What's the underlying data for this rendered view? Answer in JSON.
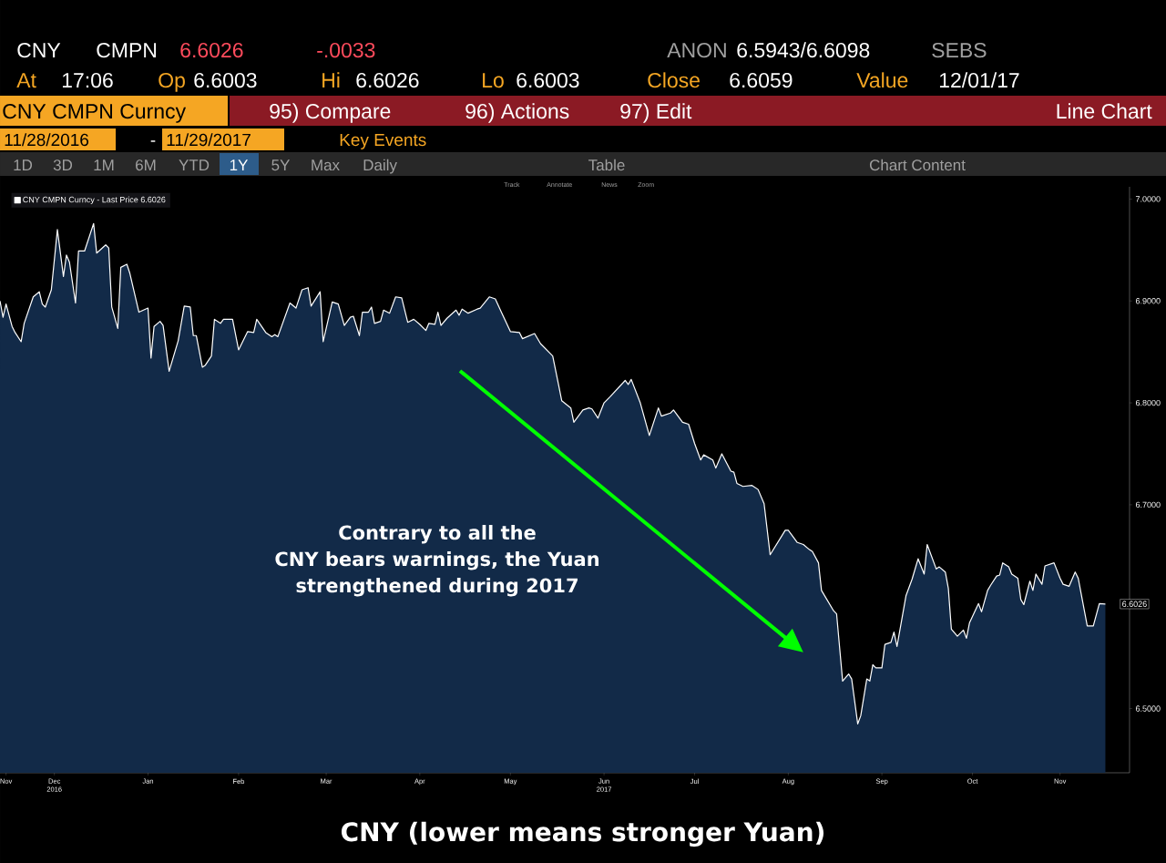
{
  "chart_data": {
    "type": "area",
    "title": "CNY (lower means stronger Yuan)",
    "xlim": [
      "2016-11-28",
      "2017-12-07"
    ],
    "ylim": [
      6.437,
      7.012
    ],
    "yticks": [
      {
        "value": 6.5,
        "label": "6.5000"
      },
      {
        "value": 6.6,
        "label": null
      },
      {
        "value": 6.7,
        "label": "6.7000"
      },
      {
        "value": 6.8,
        "label": "6.8000"
      },
      {
        "value": 6.9,
        "label": "6.9000"
      },
      {
        "value": 7.0,
        "label": "7.0000"
      }
    ],
    "xticks": [
      {
        "value": "2016-11-30",
        "label": "Nov"
      },
      {
        "value": "2016-12-16",
        "label": "Dec 2016"
      },
      {
        "value": "2017-01-16",
        "label": "Jan"
      },
      {
        "value": "2017-02-15",
        "label": "Feb"
      },
      {
        "value": "2017-03-16",
        "label": "Mar"
      },
      {
        "value": "2017-04-16",
        "label": "Apr"
      },
      {
        "value": "2017-05-16",
        "label": "May"
      },
      {
        "value": "2017-06-16",
        "label": "Jun 2017"
      },
      {
        "value": "2017-07-16",
        "label": "Jul"
      },
      {
        "value": "2017-08-16",
        "label": "Aug"
      },
      {
        "value": "2017-09-16",
        "label": "Sep"
      },
      {
        "value": "2017-10-16",
        "label": "Oct"
      },
      {
        "value": "2017-11-14",
        "label": "Nov"
      }
    ],
    "legend": "top left",
    "grid": false,
    "marker": "none",
    "annotations": [
      "CNY",
      "CMPN",
      "6.6026",
      "-.0033",
      "ANON",
      "6.5943/6.6098",
      "SEBS",
      "At",
      "17:06",
      "Op",
      "6.6003",
      "Hi",
      "6.6026",
      "Lo",
      "6.6003",
      "Close",
      "6.6059",
      "Value",
      "12/01/17",
      "CNY CMPN Curncy",
      "95) Compare",
      "96) Actions",
      "97) Edit",
      "Line Chart",
      "11/28/2016",
      "-",
      "11/29/2017",
      "Key Events",
      "1D",
      "3D",
      "1M",
      "6M",
      "YTD",
      "1Y",
      "5Y",
      "Max",
      "Daily",
      "Table",
      "Chart Content",
      "Track",
      "Annotate",
      "News",
      "Zoom",
      "Contrary to all the",
      "CNY bears warnings, the Yuan",
      "strengthened during 2017",
      {
        "text": "6.6026",
        "x": "2017-11-29",
        "y": 6.6026
      }
    ],
    "series": [
      {
        "name": "CNY CMPN Curncy - Last Price 6.6026",
        "color": "#ffffff",
        "x": [
          "2016-11-28",
          "2016-11-29",
          "2016-11-30",
          "2016-12-02",
          "2016-12-03",
          "2016-12-05",
          "2016-12-06",
          "2016-12-09",
          "2016-12-11",
          "2016-12-12",
          "2016-12-13",
          "2016-12-15",
          "2016-12-17",
          "2016-12-19",
          "2016-12-20",
          "2016-12-21",
          "2016-12-23",
          "2016-12-24",
          "2016-12-26",
          "2016-12-29",
          "2016-12-30",
          "2017-01-02",
          "2017-01-03",
          "2017-01-04",
          "2017-01-06",
          "2017-01-07",
          "2017-01-09",
          "2017-01-10",
          "2017-01-13",
          "2017-01-16",
          "2017-01-17",
          "2017-01-18",
          "2017-01-20",
          "2017-01-21",
          "2017-01-23",
          "2017-01-26",
          "2017-01-28",
          "2017-01-30",
          "2017-01-31",
          "2017-02-01",
          "2017-02-03",
          "2017-02-04",
          "2017-02-06",
          "2017-02-07",
          "2017-02-09",
          "2017-02-10",
          "2017-02-13",
          "2017-02-15",
          "2017-02-18",
          "2017-02-20",
          "2017-02-21",
          "2017-02-24",
          "2017-02-26",
          "2017-02-27",
          "2017-02-28",
          "2017-03-04",
          "2017-03-06",
          "2017-03-08",
          "2017-03-10",
          "2017-03-11",
          "2017-03-14",
          "2017-03-15",
          "2017-03-18",
          "2017-03-20",
          "2017-03-22",
          "2017-03-24",
          "2017-03-25",
          "2017-03-27",
          "2017-03-28",
          "2017-03-30",
          "2017-03-31",
          "2017-04-01",
          "2017-04-03",
          "2017-04-04",
          "2017-04-06",
          "2017-04-08",
          "2017-04-10",
          "2017-04-12",
          "2017-04-14",
          "2017-04-16",
          "2017-04-18",
          "2017-04-19",
          "2017-04-21",
          "2017-04-22",
          "2017-04-23",
          "2017-04-25",
          "2017-04-28",
          "2017-04-29",
          "2017-04-30",
          "2017-05-02",
          "2017-05-05",
          "2017-05-06",
          "2017-05-09",
          "2017-05-11",
          "2017-05-13",
          "2017-05-16",
          "2017-05-19",
          "2017-05-20",
          "2017-05-24",
          "2017-05-26",
          "2017-05-28",
          "2017-05-30",
          "2017-06-01",
          "2017-06-02",
          "2017-06-05",
          "2017-06-06",
          "2017-06-09",
          "2017-06-11",
          "2017-06-12",
          "2017-06-14",
          "2017-06-16",
          "2017-06-18",
          "2017-06-23",
          "2017-06-24",
          "2017-06-25",
          "2017-06-28",
          "2017-07-01",
          "2017-07-04",
          "2017-07-05",
          "2017-07-08",
          "2017-07-09",
          "2017-07-12",
          "2017-07-14",
          "2017-07-16",
          "2017-07-18",
          "2017-07-19",
          "2017-07-22",
          "2017-07-23",
          "2017-07-25",
          "2017-07-28",
          "2017-07-29",
          "2017-07-30",
          "2017-08-01",
          "2017-08-04",
          "2017-08-06",
          "2017-08-08",
          "2017-08-10",
          "2017-08-15",
          "2017-08-16",
          "2017-08-19",
          "2017-08-21",
          "2017-08-23",
          "2017-08-24",
          "2017-08-26",
          "2017-08-27",
          "2017-08-31",
          "2017-09-01",
          "2017-09-03",
          "2017-09-05",
          "2017-09-06",
          "2017-09-08",
          "2017-09-09",
          "2017-09-11",
          "2017-09-12",
          "2017-09-13",
          "2017-09-14",
          "2017-09-16",
          "2017-09-17",
          "2017-09-19",
          "2017-09-20",
          "2017-09-21",
          "2017-09-24",
          "2017-09-26",
          "2017-09-28",
          "2017-09-30",
          "2017-10-01",
          "2017-10-04",
          "2017-10-05",
          "2017-10-07",
          "2017-10-08",
          "2017-10-09",
          "2017-10-11",
          "2017-10-13",
          "2017-10-14",
          "2017-10-15",
          "2017-10-18",
          "2017-10-19",
          "2017-10-21",
          "2017-10-22",
          "2017-10-24",
          "2017-10-25",
          "2017-10-26",
          "2017-10-28",
          "2017-10-29",
          "2017-10-31",
          "2017-11-01",
          "2017-11-02",
          "2017-11-04",
          "2017-11-05",
          "2017-11-06",
          "2017-11-08",
          "2017-11-09",
          "2017-11-12",
          "2017-11-14",
          "2017-11-15",
          "2017-11-17",
          "2017-11-19",
          "2017-11-20",
          "2017-11-23",
          "2017-11-25",
          "2017-11-27",
          "2017-11-29"
        ],
        "values": [
          6.9,
          6.884,
          6.897,
          6.875,
          6.869,
          6.86,
          6.878,
          6.904,
          6.909,
          6.897,
          6.894,
          6.911,
          6.97,
          6.924,
          6.945,
          6.938,
          6.898,
          6.949,
          6.949,
          6.976,
          6.947,
          6.955,
          6.952,
          6.894,
          6.873,
          6.933,
          6.936,
          6.927,
          6.889,
          6.893,
          6.844,
          6.875,
          6.88,
          6.876,
          6.831,
          6.861,
          6.895,
          6.894,
          6.866,
          6.866,
          6.835,
          6.837,
          6.846,
          6.882,
          6.878,
          6.882,
          6.882,
          6.852,
          6.87,
          6.869,
          6.882,
          6.869,
          6.865,
          6.867,
          6.865,
          6.898,
          6.893,
          6.911,
          6.913,
          6.895,
          6.909,
          6.86,
          6.899,
          6.897,
          6.876,
          6.884,
          6.885,
          6.866,
          6.889,
          6.889,
          6.894,
          6.878,
          6.88,
          6.891,
          6.888,
          6.904,
          6.903,
          6.879,
          6.882,
          6.877,
          6.871,
          6.878,
          6.877,
          6.889,
          6.876,
          6.883,
          6.891,
          6.886,
          6.892,
          6.888,
          6.892,
          6.893,
          6.904,
          6.902,
          6.889,
          6.87,
          6.869,
          6.863,
          6.868,
          6.858,
          6.852,
          6.846,
          6.817,
          6.802,
          6.795,
          6.781,
          6.793,
          6.795,
          6.794,
          6.785,
          6.8,
          6.806,
          6.822,
          6.818,
          6.823,
          6.8,
          6.768,
          6.795,
          6.787,
          6.79,
          6.793,
          6.781,
          6.779,
          6.76,
          6.744,
          6.749,
          6.744,
          6.736,
          6.75,
          6.733,
          6.732,
          6.721,
          6.718,
          6.719,
          6.715,
          6.701,
          6.651,
          6.675,
          6.675,
          6.663,
          6.661,
          6.656,
          6.654,
          6.643,
          6.616,
          6.596,
          6.593,
          6.527,
          6.534,
          6.529,
          6.485,
          6.493,
          6.529,
          6.527,
          6.543,
          6.54,
          6.54,
          6.563,
          6.565,
          6.575,
          6.561,
          6.611,
          6.627,
          6.647,
          6.632,
          6.661,
          6.637,
          6.639,
          6.634,
          6.618,
          6.578,
          6.571,
          6.577,
          6.569,
          6.584,
          6.603,
          6.595,
          6.616,
          6.621,
          6.63,
          6.631,
          6.643,
          6.639,
          6.632,
          6.628,
          6.607,
          6.602,
          6.625,
          6.616,
          6.632,
          6.622,
          6.64,
          6.643,
          6.628,
          6.622,
          6.62,
          6.634,
          6.628,
          6.581,
          6.581,
          6.603,
          6.6026
        ]
      }
    ]
  }
}
